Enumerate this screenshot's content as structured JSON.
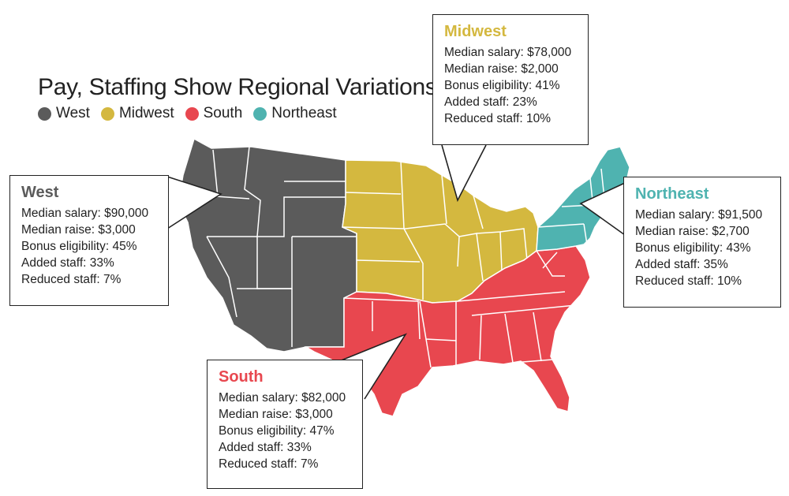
{
  "title": "Pay, Staffing Show Regional Variations",
  "colors": {
    "west": "#5b5b5b",
    "midwest": "#d4b83f",
    "south": "#e8474f",
    "northeast": "#4fb3b0"
  },
  "legend": [
    {
      "label": "West",
      "color": "#5b5b5b"
    },
    {
      "label": "Midwest",
      "color": "#d4b83f"
    },
    {
      "label": "South",
      "color": "#e8474f"
    },
    {
      "label": "Northeast",
      "color": "#4fb3b0"
    }
  ],
  "regions": {
    "west": {
      "name": "West",
      "median_salary": "Median salary: $90,000",
      "median_raise": "Median raise: $3,000",
      "bonus_eligibility": "Bonus eligibility: 45%",
      "added_staff": "Added staff: 33%",
      "reduced_staff": "Reduced staff: 7%"
    },
    "midwest": {
      "name": "Midwest",
      "median_salary": "Median salary: $78,000",
      "median_raise": "Median raise: $2,000",
      "bonus_eligibility": "Bonus eligibility: 41%",
      "added_staff": "Added staff: 23%",
      "reduced_staff": "Reduced staff: 10%"
    },
    "south": {
      "name": "South",
      "median_salary": "Median salary: $82,000",
      "median_raise": "Median raise: $3,000",
      "bonus_eligibility": "Bonus eligibility: 47%",
      "added_staff": "Added staff: 33%",
      "reduced_staff": "Reduced staff: 7%"
    },
    "northeast": {
      "name": "Northeast",
      "median_salary": "Median salary: $91,500",
      "median_raise": "Median raise: $2,700",
      "bonus_eligibility": "Bonus eligibility: 43%",
      "added_staff": "Added staff: 35%",
      "reduced_staff": "Reduced staff: 10%"
    }
  }
}
